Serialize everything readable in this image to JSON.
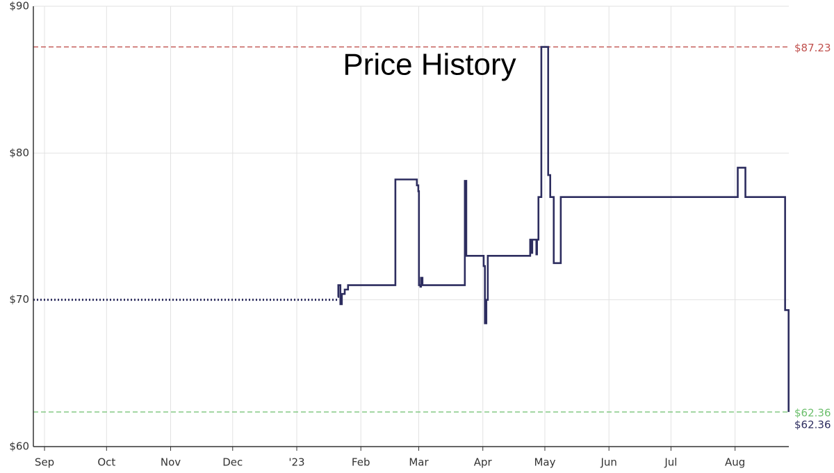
{
  "chart_data": {
    "type": "line",
    "title": "Price History",
    "step": true,
    "grid": true,
    "xlim": [
      -5.4,
      360
    ],
    "xticks": [
      {
        "value": 0,
        "label": "Sep"
      },
      {
        "value": 30,
        "label": "Oct"
      },
      {
        "value": 61,
        "label": "Nov"
      },
      {
        "value": 91,
        "label": "Dec"
      },
      {
        "value": 122,
        "label": "'23"
      },
      {
        "value": 153,
        "label": "Feb"
      },
      {
        "value": 181,
        "label": "Mar"
      },
      {
        "value": 212,
        "label": "Apr"
      },
      {
        "value": 242,
        "label": "May"
      },
      {
        "value": 273,
        "label": "Jun"
      },
      {
        "value": 303,
        "label": "Jul"
      },
      {
        "value": 334,
        "label": "Aug"
      }
    ],
    "ylim": [
      60,
      90
    ],
    "yticks": [
      {
        "value": 60,
        "label": "$60"
      },
      {
        "value": 70,
        "label": "$70"
      },
      {
        "value": 80,
        "label": "$80"
      },
      {
        "value": 90,
        "label": "$90"
      }
    ],
    "series": [
      {
        "color": "#2d2d5f",
        "style": "dotted",
        "x": [
          -5.4,
          141.8
        ],
        "values": [
          70,
          70
        ]
      },
      {
        "color": "#2d2d5f",
        "style": "solid",
        "x": [
          141.8,
          142.1,
          143.1,
          143.8,
          145.2,
          146.8,
          169.7,
          180.1,
          180.8,
          181.1,
          181.8,
          182.1,
          182.8,
          189.5,
          203.3,
          204.0,
          212.4,
          213.0,
          213.7,
          214.4,
          234.9,
          235.5,
          235.9,
          237.9,
          238.2,
          238.9,
          240.3,
          243.6,
          244.6,
          246.3,
          249.7,
          335.3,
          339.0,
          358.2,
          359.9
        ],
        "values": [
          70.2,
          71,
          69.7,
          70.4,
          70.7,
          71,
          78.2,
          77.8,
          77.4,
          71,
          70.9,
          71.5,
          71,
          71,
          78.1,
          73,
          72.3,
          68.4,
          70,
          73,
          74.1,
          73.2,
          74.1,
          73.1,
          74.1,
          77,
          87.23,
          78.5,
          77,
          72.5,
          77,
          79,
          77,
          69.3,
          62.36
        ]
      }
    ],
    "reference_lines": [
      {
        "value": 87.23,
        "label": "$87.23",
        "color": "#c0504d"
      },
      {
        "value": 62.36,
        "label": "$62.36",
        "color": "#6cbf6c"
      }
    ],
    "current_price": {
      "value": 62.36,
      "label": "$62.36",
      "color": "#2d2d5f"
    }
  }
}
